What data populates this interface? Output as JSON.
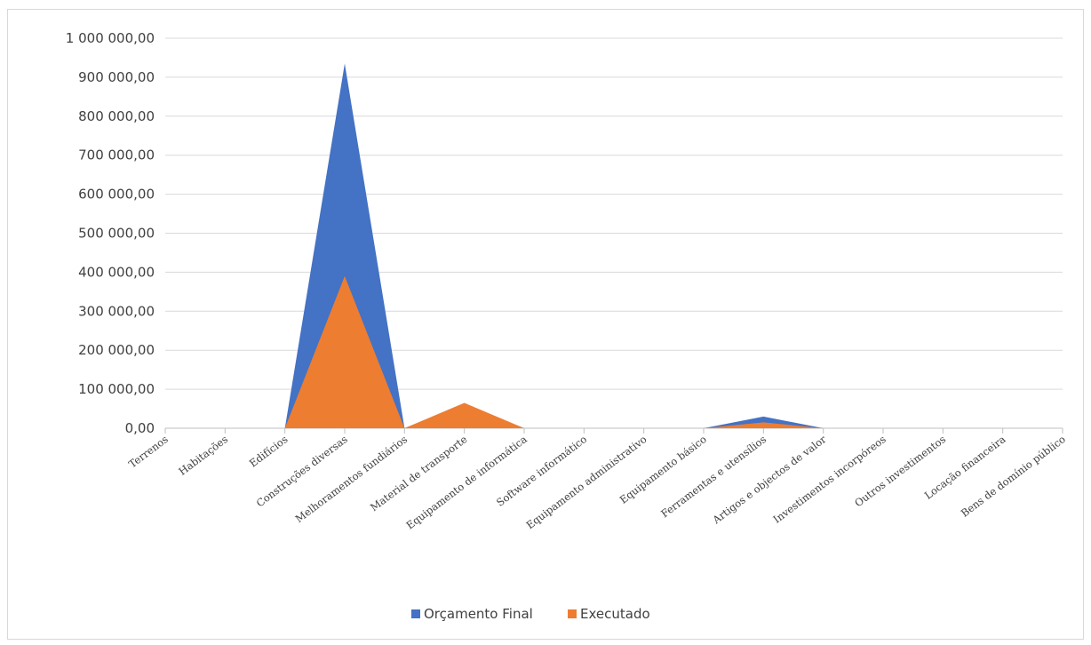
{
  "chart_data": {
    "type": "area",
    "title": "",
    "xlabel": "",
    "ylabel": "",
    "ylim": [
      0,
      1000000
    ],
    "y_ticks": [
      "0,00",
      "100 000,00",
      "200 000,00",
      "300 000,00",
      "400 000,00",
      "500 000,00",
      "600 000,00",
      "700 000,00",
      "800 000,00",
      "900 000,00",
      "1 000 000,00"
    ],
    "categories": [
      "Terrenos",
      "Habitações",
      "Edifícios",
      "Construções diversas",
      "Melhoramentos fundiários",
      "Material de transporte",
      "Equipamento de informática",
      "Software informático",
      "Equipamento administrativo",
      "Equipamento básico",
      "Ferramentas e utensílios",
      "Artigos e objectos de valor",
      "Investimentos incorpóreos",
      "Outros investimentos",
      "Locação financeira",
      "Bens de domínio público"
    ],
    "series": [
      {
        "name": "Orçamento Final",
        "color": "#4472c4",
        "values": [
          0,
          0,
          0,
          935000,
          0,
          62000,
          0,
          0,
          0,
          0,
          30000,
          0,
          0,
          0,
          0,
          0
        ]
      },
      {
        "name": "Executado",
        "color": "#ed7d31",
        "values": [
          0,
          0,
          0,
          390000,
          0,
          65000,
          0,
          0,
          0,
          0,
          15000,
          0,
          0,
          0,
          0,
          0
        ]
      }
    ],
    "grid": true,
    "legend_position": "bottom"
  }
}
